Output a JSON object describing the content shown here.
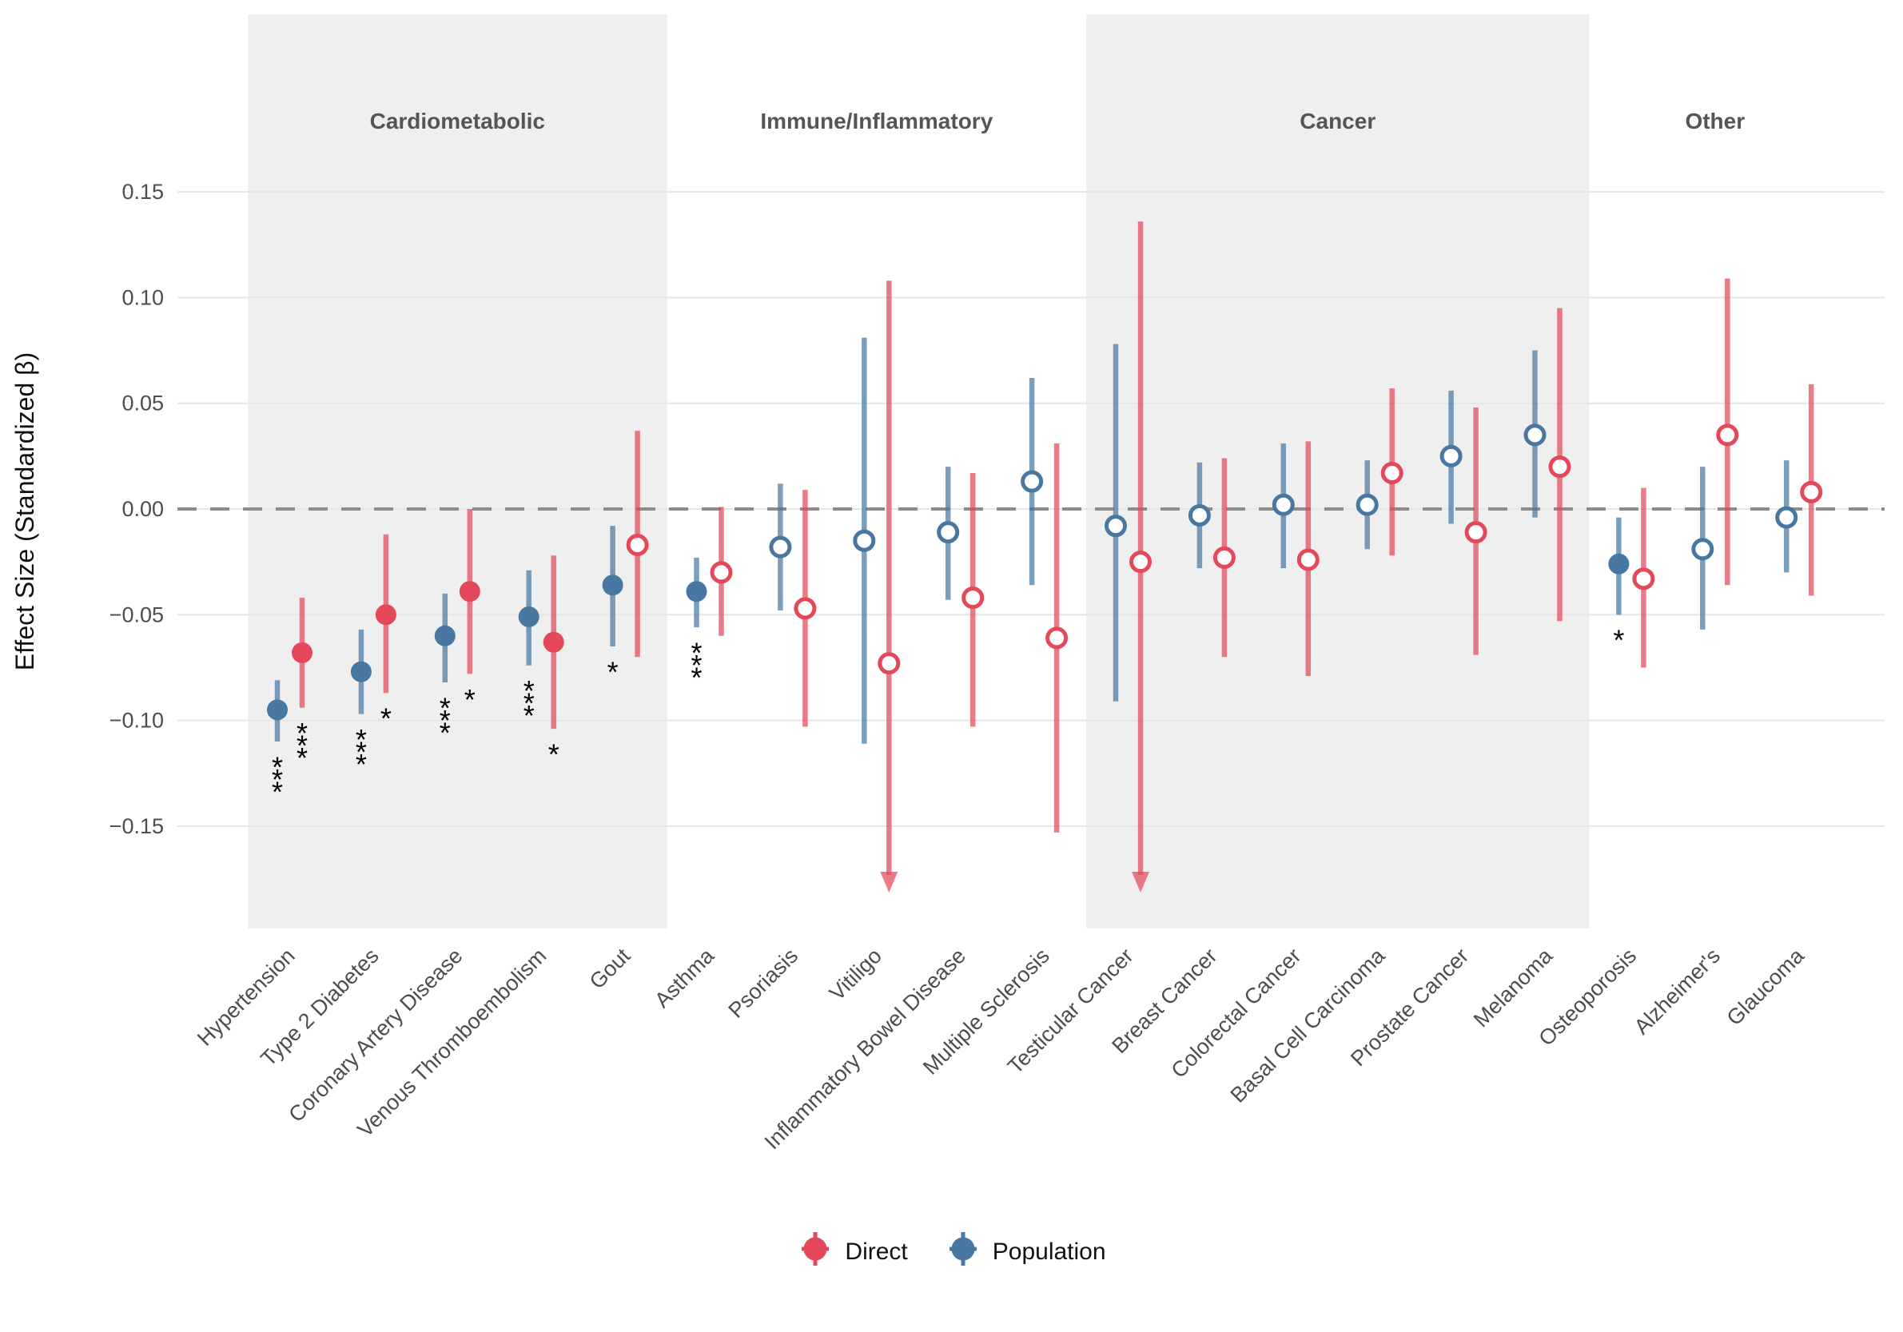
{
  "y_axis": {
    "label": "Effect Size (Standardized β)",
    "ticks": [
      {
        "label": "0.15",
        "value": 0.15
      },
      {
        "label": "0.10",
        "value": 0.1
      },
      {
        "label": "0.05",
        "value": 0.05
      },
      {
        "label": "0.00",
        "value": 0.0
      },
      {
        "label": "−0.05",
        "value": -0.05
      },
      {
        "label": "−0.10",
        "value": -0.1
      },
      {
        "label": "−0.15",
        "value": -0.15
      }
    ]
  },
  "legend": {
    "direct_label": "Direct",
    "population_label": "Population"
  },
  "colors": {
    "direct": "#e4485a",
    "population": "#4878a2",
    "band": "#efefef",
    "zero_line": "#8c8c8c",
    "grid": "#e6e6e8",
    "axis_text": "#4d4d4d",
    "header_text": "#555555",
    "sig_text": "#000000"
  },
  "chart_data": {
    "type": "pointrange-forest",
    "title": "",
    "xlabel": "",
    "ylabel": "Effect Size (Standardized β)",
    "ylim": [
      -0.198,
      0.235
    ],
    "yticks": [
      0.15,
      0.1,
      0.05,
      0.0,
      -0.05,
      -0.1,
      -0.15
    ],
    "zero_reference_line": 0,
    "legend_position": "bottom",
    "series_names": [
      "Direct",
      "Population"
    ],
    "note": "filled=significant point; open=non-significant; sig stars shown under interval; clip_lo=interval clipped at panel bottom with down arrow",
    "groups": [
      {
        "name": "Cardiometabolic",
        "shaded": true,
        "diseases": [
          {
            "name": "Hypertension",
            "population": {
              "est": -0.095,
              "lo": -0.11,
              "hi": -0.081,
              "filled": true,
              "sig": "***"
            },
            "direct": {
              "est": -0.068,
              "lo": -0.094,
              "hi": -0.042,
              "filled": true,
              "sig": "***"
            }
          },
          {
            "name": "Type 2 Diabetes",
            "population": {
              "est": -0.077,
              "lo": -0.097,
              "hi": -0.057,
              "filled": true,
              "sig": "***"
            },
            "direct": {
              "est": -0.05,
              "lo": -0.087,
              "hi": -0.012,
              "filled": true,
              "sig": "*"
            }
          },
          {
            "name": "Coronary Artery Disease",
            "population": {
              "est": -0.06,
              "lo": -0.082,
              "hi": -0.04,
              "filled": true,
              "sig": "***"
            },
            "direct": {
              "est": -0.039,
              "lo": -0.078,
              "hi": 0.0,
              "filled": true,
              "sig": "*"
            }
          },
          {
            "name": "Venous Thromboembolism",
            "population": {
              "est": -0.051,
              "lo": -0.074,
              "hi": -0.029,
              "filled": true,
              "sig": "***"
            },
            "direct": {
              "est": -0.063,
              "lo": -0.104,
              "hi": -0.022,
              "filled": true,
              "sig": "*"
            }
          },
          {
            "name": "Gout",
            "population": {
              "est": -0.036,
              "lo": -0.065,
              "hi": -0.008,
              "filled": true,
              "sig": "*"
            },
            "direct": {
              "est": -0.017,
              "lo": -0.07,
              "hi": 0.037,
              "filled": false,
              "sig": ""
            }
          }
        ]
      },
      {
        "name": "Immune/Inflammatory",
        "shaded": false,
        "diseases": [
          {
            "name": "Asthma",
            "population": {
              "est": -0.039,
              "lo": -0.056,
              "hi": -0.023,
              "filled": true,
              "sig": "***"
            },
            "direct": {
              "est": -0.03,
              "lo": -0.06,
              "hi": 0.001,
              "filled": false,
              "sig": ""
            }
          },
          {
            "name": "Psoriasis",
            "population": {
              "est": -0.018,
              "lo": -0.048,
              "hi": 0.012,
              "filled": false,
              "sig": ""
            },
            "direct": {
              "est": -0.047,
              "lo": -0.103,
              "hi": 0.009,
              "filled": false,
              "sig": ""
            }
          },
          {
            "name": "Vitiligo",
            "population": {
              "est": -0.015,
              "lo": -0.111,
              "hi": 0.081,
              "filled": false,
              "sig": ""
            },
            "direct": {
              "est": -0.073,
              "lo": -0.18,
              "hi": 0.108,
              "filled": false,
              "sig": "",
              "clip_lo": true
            }
          },
          {
            "name": "Inflammatory Bowel Disease",
            "population": {
              "est": -0.011,
              "lo": -0.043,
              "hi": 0.02,
              "filled": false,
              "sig": ""
            },
            "direct": {
              "est": -0.042,
              "lo": -0.103,
              "hi": 0.017,
              "filled": false,
              "sig": ""
            }
          },
          {
            "name": "Multiple Sclerosis",
            "population": {
              "est": 0.013,
              "lo": -0.036,
              "hi": 0.062,
              "filled": false,
              "sig": ""
            },
            "direct": {
              "est": -0.061,
              "lo": -0.153,
              "hi": 0.031,
              "filled": false,
              "sig": ""
            }
          }
        ]
      },
      {
        "name": "Cancer",
        "shaded": true,
        "diseases": [
          {
            "name": "Testicular Cancer",
            "population": {
              "est": -0.008,
              "lo": -0.091,
              "hi": 0.078,
              "filled": false,
              "sig": ""
            },
            "direct": {
              "est": -0.025,
              "lo": -0.18,
              "hi": 0.136,
              "filled": false,
              "sig": "",
              "clip_lo": true
            }
          },
          {
            "name": "Breast Cancer",
            "population": {
              "est": -0.003,
              "lo": -0.028,
              "hi": 0.022,
              "filled": false,
              "sig": ""
            },
            "direct": {
              "est": -0.023,
              "lo": -0.07,
              "hi": 0.024,
              "filled": false,
              "sig": ""
            }
          },
          {
            "name": "Colorectal Cancer",
            "population": {
              "est": 0.002,
              "lo": -0.028,
              "hi": 0.031,
              "filled": false,
              "sig": ""
            },
            "direct": {
              "est": -0.024,
              "lo": -0.079,
              "hi": 0.032,
              "filled": false,
              "sig": ""
            }
          },
          {
            "name": "Basal Cell Carcinoma",
            "population": {
              "est": 0.002,
              "lo": -0.019,
              "hi": 0.023,
              "filled": false,
              "sig": ""
            },
            "direct": {
              "est": 0.017,
              "lo": -0.022,
              "hi": 0.057,
              "filled": false,
              "sig": ""
            }
          },
          {
            "name": "Prostate Cancer",
            "population": {
              "est": 0.025,
              "lo": -0.007,
              "hi": 0.056,
              "filled": false,
              "sig": ""
            },
            "direct": {
              "est": -0.011,
              "lo": -0.069,
              "hi": 0.048,
              "filled": false,
              "sig": ""
            }
          },
          {
            "name": "Melanoma",
            "population": {
              "est": 0.035,
              "lo": -0.004,
              "hi": 0.075,
              "filled": false,
              "sig": ""
            },
            "direct": {
              "est": 0.02,
              "lo": -0.053,
              "hi": 0.095,
              "filled": false,
              "sig": ""
            }
          }
        ]
      },
      {
        "name": "Other",
        "shaded": false,
        "diseases": [
          {
            "name": "Osteoporosis",
            "population": {
              "est": -0.026,
              "lo": -0.05,
              "hi": -0.004,
              "filled": true,
              "sig": "*"
            },
            "direct": {
              "est": -0.033,
              "lo": -0.075,
              "hi": 0.01,
              "filled": false,
              "sig": ""
            }
          },
          {
            "name": "Alzheimer's",
            "population": {
              "est": -0.019,
              "lo": -0.057,
              "hi": 0.02,
              "filled": false,
              "sig": ""
            },
            "direct": {
              "est": 0.035,
              "lo": -0.036,
              "hi": 0.109,
              "filled": false,
              "sig": ""
            }
          },
          {
            "name": "Glaucoma",
            "population": {
              "est": -0.004,
              "lo": -0.03,
              "hi": 0.023,
              "filled": false,
              "sig": ""
            },
            "direct": {
              "est": 0.008,
              "lo": -0.041,
              "hi": 0.059,
              "filled": false,
              "sig": ""
            }
          }
        ]
      }
    ]
  }
}
